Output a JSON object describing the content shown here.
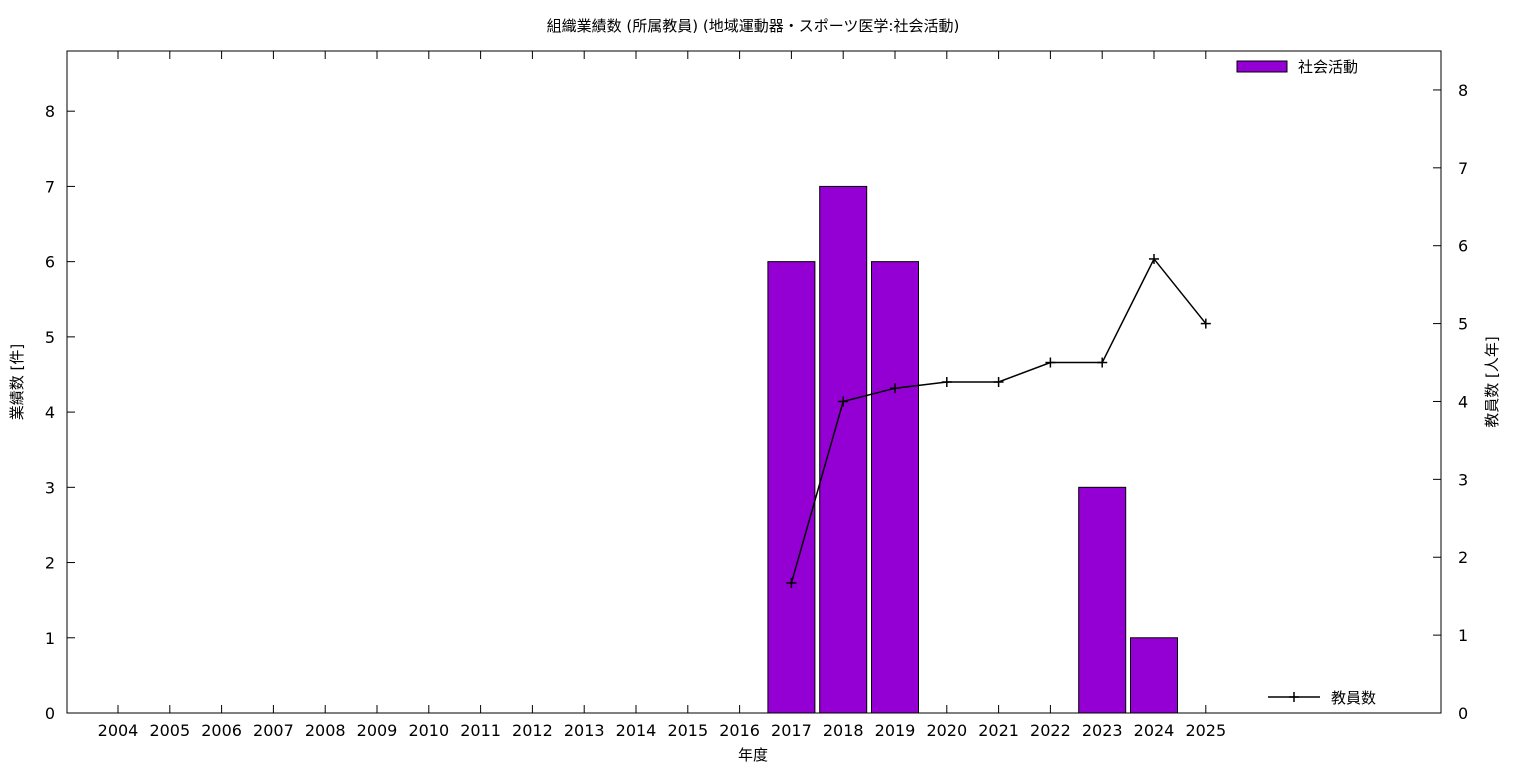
{
  "chart_data": {
    "type": "bar",
    "title": "組織業績数 (所属教員) (地域運動器・スポーツ医学:社会活動)",
    "xlabel": "年度",
    "ylabel": "業績数 [件]",
    "y2label": "教員数 [人年]",
    "categories": [
      "2004",
      "2005",
      "2006",
      "2007",
      "2008",
      "2009",
      "2010",
      "2011",
      "2012",
      "2013",
      "2014",
      "2015",
      "2016",
      "2017",
      "2018",
      "2019",
      "2020",
      "2021",
      "2022",
      "2023",
      "2024",
      "2025"
    ],
    "series": [
      {
        "name": "社会活動",
        "type": "bar",
        "axis": "left",
        "color": "#9400d3",
        "values": [
          0,
          0,
          0,
          0,
          0,
          0,
          0,
          0,
          0,
          0,
          0,
          0,
          0,
          6,
          7,
          6,
          0,
          0,
          0,
          3,
          1,
          0
        ]
      },
      {
        "name": "教員数",
        "type": "line",
        "axis": "right",
        "color": "#000000",
        "values": [
          null,
          null,
          null,
          null,
          null,
          null,
          null,
          null,
          null,
          null,
          null,
          null,
          null,
          1.67,
          4.0,
          4.17,
          4.25,
          4.25,
          4.5,
          4.5,
          5.83,
          5.0
        ]
      }
    ],
    "ylim": [
      0,
      8.8
    ],
    "y2lim": [
      0,
      8.5
    ],
    "yticks": [
      0,
      1,
      2,
      3,
      4,
      5,
      6,
      7,
      8
    ],
    "y2ticks": [
      0,
      1,
      2,
      3,
      4,
      5,
      6,
      7,
      8
    ],
    "legend_position": "top-right / bottom-right",
    "grid": false
  }
}
